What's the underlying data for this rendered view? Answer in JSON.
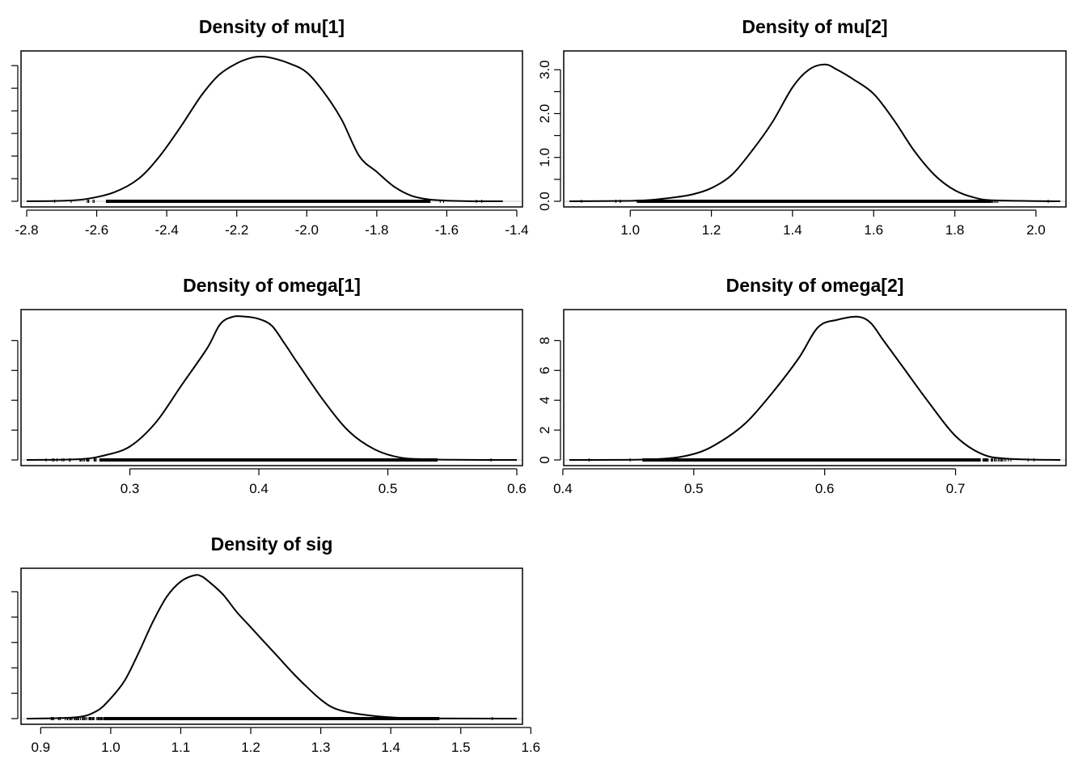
{
  "chart_data": [
    {
      "type": "line",
      "title": "Density of mu[1]",
      "xlabel": "",
      "ylabel": "",
      "xlim": [
        -2.8,
        -1.4
      ],
      "ylim": [
        0,
        3.2
      ],
      "x_ticks": [
        -2.8,
        -2.6,
        -2.4,
        -2.2,
        -2.0,
        -1.8,
        -1.6,
        -1.4
      ],
      "x_tick_labels": [
        "-2.8",
        "-2.6",
        "-2.4",
        "-2.2",
        "-2.0",
        "-1.8",
        "-1.6",
        "-1.4"
      ],
      "y_ticks": [
        0,
        0.5,
        1.0,
        1.5,
        2.0,
        2.5,
        3.0
      ],
      "y_tick_labels": [],
      "x": [
        -2.8,
        -2.7,
        -2.63,
        -2.55,
        -2.48,
        -2.42,
        -2.36,
        -2.3,
        -2.25,
        -2.2,
        -2.16,
        -2.13,
        -2.1,
        -2.05,
        -2.0,
        -1.95,
        -1.9,
        -1.85,
        -1.8,
        -1.75,
        -1.7,
        -1.65,
        -1.6,
        -1.55,
        -1.5,
        -1.44
      ],
      "y": [
        0.0,
        0.01,
        0.05,
        0.2,
        0.5,
        1.0,
        1.65,
        2.35,
        2.8,
        3.05,
        3.17,
        3.2,
        3.17,
        3.05,
        2.85,
        2.4,
        1.8,
        1.0,
        0.65,
        0.32,
        0.12,
        0.04,
        0.015,
        0.005,
        0.0,
        0.0
      ],
      "rug": {
        "x_min": -2.72,
        "x_max": -1.5
      }
    },
    {
      "type": "line",
      "title": "Density of mu[2]",
      "xlabel": "",
      "ylabel": "",
      "xlim": [
        0.85,
        2.06
      ],
      "ylim": [
        0,
        3.3
      ],
      "x_ticks": [
        1.0,
        1.2,
        1.4,
        1.6,
        1.8,
        2.0
      ],
      "x_tick_labels": [
        "1.0",
        "1.2",
        "1.4",
        "1.6",
        "1.8",
        "2.0"
      ],
      "y_ticks": [
        0,
        0.5,
        1.0,
        1.5,
        2.0,
        2.5,
        3.0
      ],
      "y_tick_labels": [
        "0.0",
        "",
        "1.0",
        "",
        "2.0",
        "",
        "3.0"
      ],
      "x": [
        0.85,
        1.0,
        1.05,
        1.1,
        1.15,
        1.2,
        1.25,
        1.3,
        1.35,
        1.4,
        1.44,
        1.48,
        1.51,
        1.55,
        1.6,
        1.65,
        1.7,
        1.75,
        1.8,
        1.85,
        1.9,
        2.06
      ],
      "y": [
        0.0,
        0.01,
        0.03,
        0.08,
        0.15,
        0.3,
        0.6,
        1.15,
        1.8,
        2.6,
        3.0,
        3.12,
        3.0,
        2.78,
        2.45,
        1.85,
        1.15,
        0.6,
        0.25,
        0.08,
        0.02,
        0.0
      ],
      "rug": {
        "x_min": 0.88,
        "x_max": 2.03
      }
    },
    {
      "type": "line",
      "title": "Density of omega[1]",
      "xlabel": "",
      "ylabel": "",
      "xlim": [
        0.22,
        0.6
      ],
      "ylim": [
        0,
        9.7
      ],
      "x_ticks": [
        0.3,
        0.4,
        0.5,
        0.6
      ],
      "x_tick_labels": [
        "0.3",
        "0.4",
        "0.5",
        "0.6"
      ],
      "y_ticks": [
        0,
        2,
        4,
        6,
        8
      ],
      "y_tick_labels": [],
      "x": [
        0.22,
        0.26,
        0.28,
        0.3,
        0.32,
        0.34,
        0.36,
        0.37,
        0.38,
        0.39,
        0.4,
        0.41,
        0.42,
        0.43,
        0.45,
        0.47,
        0.49,
        0.51,
        0.53,
        0.55,
        0.6
      ],
      "y": [
        0.0,
        0.05,
        0.3,
        0.9,
        2.5,
        5.0,
        7.5,
        9.1,
        9.6,
        9.6,
        9.45,
        9.0,
        7.8,
        6.5,
        4.0,
        1.9,
        0.7,
        0.15,
        0.05,
        0.01,
        0.0
      ],
      "rug": {
        "x_min": 0.235,
        "x_max": 0.58
      }
    },
    {
      "type": "line",
      "title": "Density of omega[2]",
      "xlabel": "",
      "ylabel": "",
      "xlim": [
        0.405,
        0.78
      ],
      "ylim": [
        0,
        9.7
      ],
      "x_ticks": [
        0.4,
        0.5,
        0.6,
        0.7
      ],
      "x_tick_labels": [
        "0.4",
        "0.5",
        "0.6",
        "0.7"
      ],
      "y_ticks": [
        0,
        2,
        4,
        6,
        8
      ],
      "y_tick_labels": [
        "0",
        "2",
        "4",
        "6",
        "8"
      ],
      "x": [
        0.405,
        0.47,
        0.5,
        0.52,
        0.54,
        0.56,
        0.58,
        0.595,
        0.61,
        0.625,
        0.635,
        0.645,
        0.66,
        0.68,
        0.7,
        0.72,
        0.74,
        0.78
      ],
      "y": [
        0.0,
        0.05,
        0.4,
        1.2,
        2.5,
        4.5,
        6.8,
        8.9,
        9.4,
        9.6,
        9.2,
        8.0,
        6.2,
        3.8,
        1.6,
        0.4,
        0.08,
        0.0
      ],
      "rug": {
        "x_min": 0.42,
        "x_max": 0.76
      }
    },
    {
      "type": "line",
      "title": "Density of sig",
      "xlabel": "",
      "ylabel": "",
      "xlim": [
        0.88,
        1.58
      ],
      "ylim": [
        0,
        5.7
      ],
      "x_ticks": [
        0.9,
        1.0,
        1.1,
        1.2,
        1.3,
        1.4,
        1.5,
        1.6
      ],
      "x_tick_labels": [
        "0.9",
        "1.0",
        "1.1",
        "1.2",
        "1.3",
        "1.4",
        "1.5",
        "1.6"
      ],
      "y_ticks": [
        0,
        1,
        2,
        3,
        4,
        5
      ],
      "y_tick_labels": [],
      "x": [
        0.88,
        0.95,
        0.98,
        1.0,
        1.02,
        1.04,
        1.06,
        1.08,
        1.1,
        1.12,
        1.13,
        1.14,
        1.16,
        1.18,
        1.2,
        1.22,
        1.24,
        1.26,
        1.28,
        1.3,
        1.32,
        1.35,
        1.4,
        1.45,
        1.58
      ],
      "y": [
        0.0,
        0.05,
        0.3,
        0.8,
        1.5,
        2.6,
        3.8,
        4.8,
        5.4,
        5.65,
        5.6,
        5.4,
        4.9,
        4.2,
        3.6,
        3.0,
        2.4,
        1.8,
        1.25,
        0.75,
        0.4,
        0.2,
        0.05,
        0.01,
        0.0
      ],
      "rug": {
        "x_min": 0.915,
        "x_max": 1.545
      }
    }
  ]
}
